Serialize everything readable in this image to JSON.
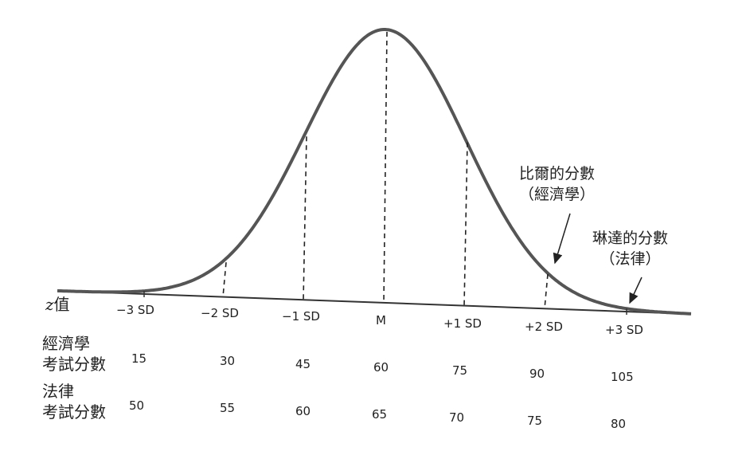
{
  "z_label": {
    "z": "z",
    "word": "值"
  },
  "sd_ticks": [
    "−3 SD",
    "−2 SD",
    "−1 SD",
    "M",
    "+1 SD",
    "+2 SD",
    "+3 SD"
  ],
  "econ": {
    "label_line1": "經濟學",
    "label_line2": "考試分數",
    "scores": [
      "15",
      "30",
      "45",
      "60",
      "75",
      "90",
      "105"
    ]
  },
  "law": {
    "label_line1": "法律",
    "label_line2": "考試分數",
    "scores": [
      "50",
      "55",
      "60",
      "65",
      "70",
      "75",
      "80"
    ]
  },
  "bill": {
    "line1": "比爾的分數",
    "line2": "（經濟學）"
  },
  "linda": {
    "line1": "琳達的分數",
    "line2": "（法律）"
  }
}
